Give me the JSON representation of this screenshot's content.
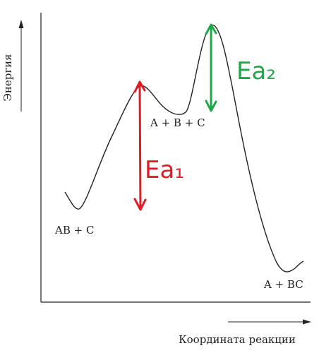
{
  "y_axis_label": "Энергия",
  "x_axis_label": "Координата реакции",
  "states": {
    "reactants": "AB + C",
    "intermediate": "A + B + C",
    "products": "A + BC"
  },
  "activation_labels": {
    "first": "Ea₁",
    "second": "Ea₂"
  },
  "colors": {
    "curve": "#222222",
    "axes": "#222222",
    "first_barrier": "#e01b24",
    "second_barrier": "#1fa84a"
  }
}
